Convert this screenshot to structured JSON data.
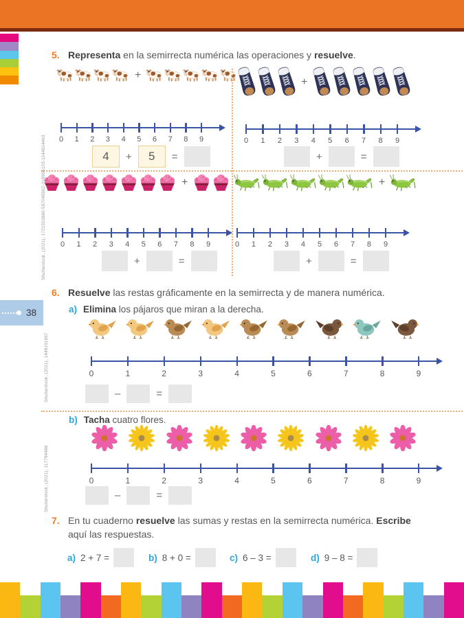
{
  "symbols": {
    "plus": "+",
    "equals": "=",
    "minus": "–"
  },
  "number_line_ticks": [
    "0",
    "1",
    "2",
    "3",
    "4",
    "5",
    "6",
    "7",
    "8",
    "9"
  ],
  "page": {
    "number": "38"
  },
  "credits": [
    "Shutterstock, (2021), 1721553880-597045962-318955103-1144814463",
    "Shutterstock, (2021), 1449161867",
    "Shutterstock, (2021), 117794488"
  ],
  "colors": {
    "header_orange": "#EA7423",
    "header_line": "#7C2A10",
    "accent_orange": "#F4791F",
    "accent_blue": "#29A8E0",
    "numberline_blue": "#3A53A4",
    "box_gray": "#E7E7E7",
    "box_cream_bg": "#FCF6E2",
    "box_cream_border": "#EDCE92",
    "tab_blue": "#AECBE8",
    "dotted_divider": "#F2A96B"
  },
  "stripes": [
    "#E5097F",
    "#A287C6",
    "#5BC5EA",
    "#A8CE38",
    "#FFC20E",
    "#F18A00"
  ],
  "footer": {
    "colors": [
      "#FBB813",
      "#B2D235",
      "#5BC5F0",
      "#8F83C1",
      "#E20D8D",
      "#F26A21"
    ],
    "bar_count": 23
  },
  "exercise5": {
    "number": "5.",
    "title_bold1": "Representa",
    "title_mid": " en la semirrecta numérica las operaciones y ",
    "title_bold2": "resuelve",
    "title_end": ".",
    "quadrants": [
      {
        "name": "cows",
        "icon": "cow",
        "group_a": 4,
        "group_b": 5,
        "equation": {
          "a": "4",
          "b": "5",
          "result": ""
        }
      },
      {
        "name": "sneakers",
        "icon": "sneaker",
        "group_a": 3,
        "group_b": 5,
        "equation": {
          "a": "",
          "b": "",
          "result": ""
        }
      },
      {
        "name": "cupcakes",
        "icon": "cupcake",
        "group_a": 7,
        "group_b": 2,
        "equation": {
          "a": "",
          "b": "",
          "result": ""
        }
      },
      {
        "name": "grasshoppers",
        "icon": "grasshopper",
        "group_a": 5,
        "group_b": 1,
        "equation": {
          "a": "",
          "b": "",
          "result": ""
        }
      }
    ]
  },
  "exercise6": {
    "number": "6.",
    "title_bold": "Resuelve",
    "title_rest": " las restas gráficamente en la semirrecta y de manera numérica.",
    "part_a": {
      "label": "a)",
      "bold": "Elimina",
      "rest": " los pájaros que miran a la derecha.",
      "birds": [
        {
          "color": "light",
          "facing": "left"
        },
        {
          "color": "light",
          "facing": "left"
        },
        {
          "color": "brown",
          "facing": "left"
        },
        {
          "color": "light",
          "facing": "left"
        },
        {
          "color": "brown",
          "facing": "left"
        },
        {
          "color": "brown",
          "facing": "left"
        },
        {
          "color": "dark",
          "facing": "right"
        },
        {
          "color": "teal",
          "facing": "left"
        },
        {
          "color": "dark",
          "facing": "right"
        }
      ],
      "equation": {
        "a": "",
        "b": "",
        "result": ""
      }
    },
    "part_b": {
      "label": "b)",
      "bold": "Tacha",
      "rest": " cuatro flores.",
      "flowers": [
        "pink",
        "yellow",
        "pink",
        "yellow",
        "pink",
        "yellow",
        "pink",
        "yellow",
        "pink"
      ],
      "equation": {
        "a": "",
        "b": "",
        "result": ""
      }
    }
  },
  "exercise7": {
    "number": "7.",
    "line1_t1": "En tu cuaderno ",
    "line1_b1": "resuelve",
    "line1_t2": " las sumas y restas en la semirrecta numérica.  ",
    "line1_b2": "Escribe",
    "line2": "aquí las respuestas.",
    "items": [
      {
        "label": "a)",
        "expression": "2 + 7 ="
      },
      {
        "label": "b)",
        "expression": "8 + 0 ="
      },
      {
        "label": "c)",
        "expression": "6 – 3 ="
      },
      {
        "label": "d)",
        "expression": "9 – 8 ="
      }
    ]
  }
}
